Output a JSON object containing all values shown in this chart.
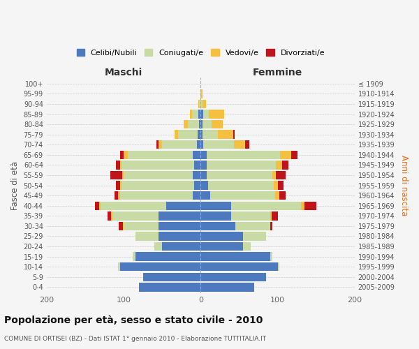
{
  "age_groups": [
    "0-4",
    "5-9",
    "10-14",
    "15-19",
    "20-24",
    "25-29",
    "30-34",
    "35-39",
    "40-44",
    "45-49",
    "50-54",
    "55-59",
    "60-64",
    "65-69",
    "70-74",
    "75-79",
    "80-84",
    "85-89",
    "90-94",
    "95-99",
    "100+"
  ],
  "birth_years": [
    "2005-2009",
    "2000-2004",
    "1995-1999",
    "1990-1994",
    "1985-1989",
    "1980-1984",
    "1975-1979",
    "1970-1974",
    "1965-1969",
    "1960-1964",
    "1955-1959",
    "1950-1954",
    "1945-1949",
    "1940-1944",
    "1935-1939",
    "1930-1934",
    "1925-1929",
    "1920-1924",
    "1915-1919",
    "1910-1914",
    "≤ 1909"
  ],
  "maschi": {
    "celibi": [
      80,
      75,
      105,
      85,
      50,
      55,
      55,
      55,
      45,
      10,
      8,
      10,
      8,
      10,
      5,
      4,
      2,
      3,
      0,
      0,
      0
    ],
    "coniugati": [
      0,
      0,
      2,
      3,
      10,
      30,
      45,
      60,
      85,
      95,
      95,
      90,
      95,
      85,
      45,
      25,
      15,
      8,
      2,
      0,
      0
    ],
    "vedovi": [
      0,
      0,
      0,
      0,
      0,
      0,
      1,
      1,
      2,
      2,
      2,
      2,
      2,
      5,
      5,
      5,
      5,
      3,
      1,
      0,
      0
    ],
    "divorziati": [
      0,
      0,
      0,
      0,
      0,
      0,
      5,
      5,
      5,
      5,
      5,
      15,
      5,
      5,
      2,
      0,
      0,
      0,
      0,
      0,
      0
    ]
  },
  "femmine": {
    "nubili": [
      70,
      85,
      100,
      90,
      55,
      55,
      45,
      40,
      40,
      12,
      10,
      8,
      8,
      8,
      3,
      2,
      2,
      3,
      0,
      0,
      0
    ],
    "coniugate": [
      0,
      0,
      2,
      3,
      10,
      30,
      45,
      50,
      90,
      85,
      85,
      85,
      90,
      95,
      40,
      20,
      12,
      8,
      2,
      0,
      0
    ],
    "vedove": [
      0,
      0,
      0,
      0,
      0,
      0,
      0,
      2,
      5,
      5,
      5,
      5,
      8,
      15,
      15,
      20,
      15,
      20,
      5,
      2,
      0
    ],
    "divorziate": [
      0,
      0,
      0,
      0,
      0,
      0,
      3,
      8,
      15,
      8,
      8,
      12,
      8,
      8,
      5,
      2,
      0,
      0,
      0,
      0,
      0
    ]
  },
  "colors": {
    "celibi": "#4d7abf",
    "coniugati": "#c8dba4",
    "vedovi": "#f5c040",
    "divorziati": "#c0141a"
  },
  "legend_labels": [
    "Celibi/Nubili",
    "Coniugati/e",
    "Vedovi/e",
    "Divorziati/e"
  ],
  "title": "Popolazione per età, sesso e stato civile - 2010",
  "subtitle": "COMUNE DI ORTISEI (BZ) - Dati ISTAT 1° gennaio 2010 - Elaborazione TUTTITALIA.IT",
  "xlabel_left": "Maschi",
  "xlabel_right": "Femmine",
  "ylabel_left": "Fasce di età",
  "ylabel_right": "Anni di nascita",
  "xlim": 200,
  "bg_color": "#f5f5f5",
  "grid_color": "#cccccc",
  "bar_height": 0.85
}
